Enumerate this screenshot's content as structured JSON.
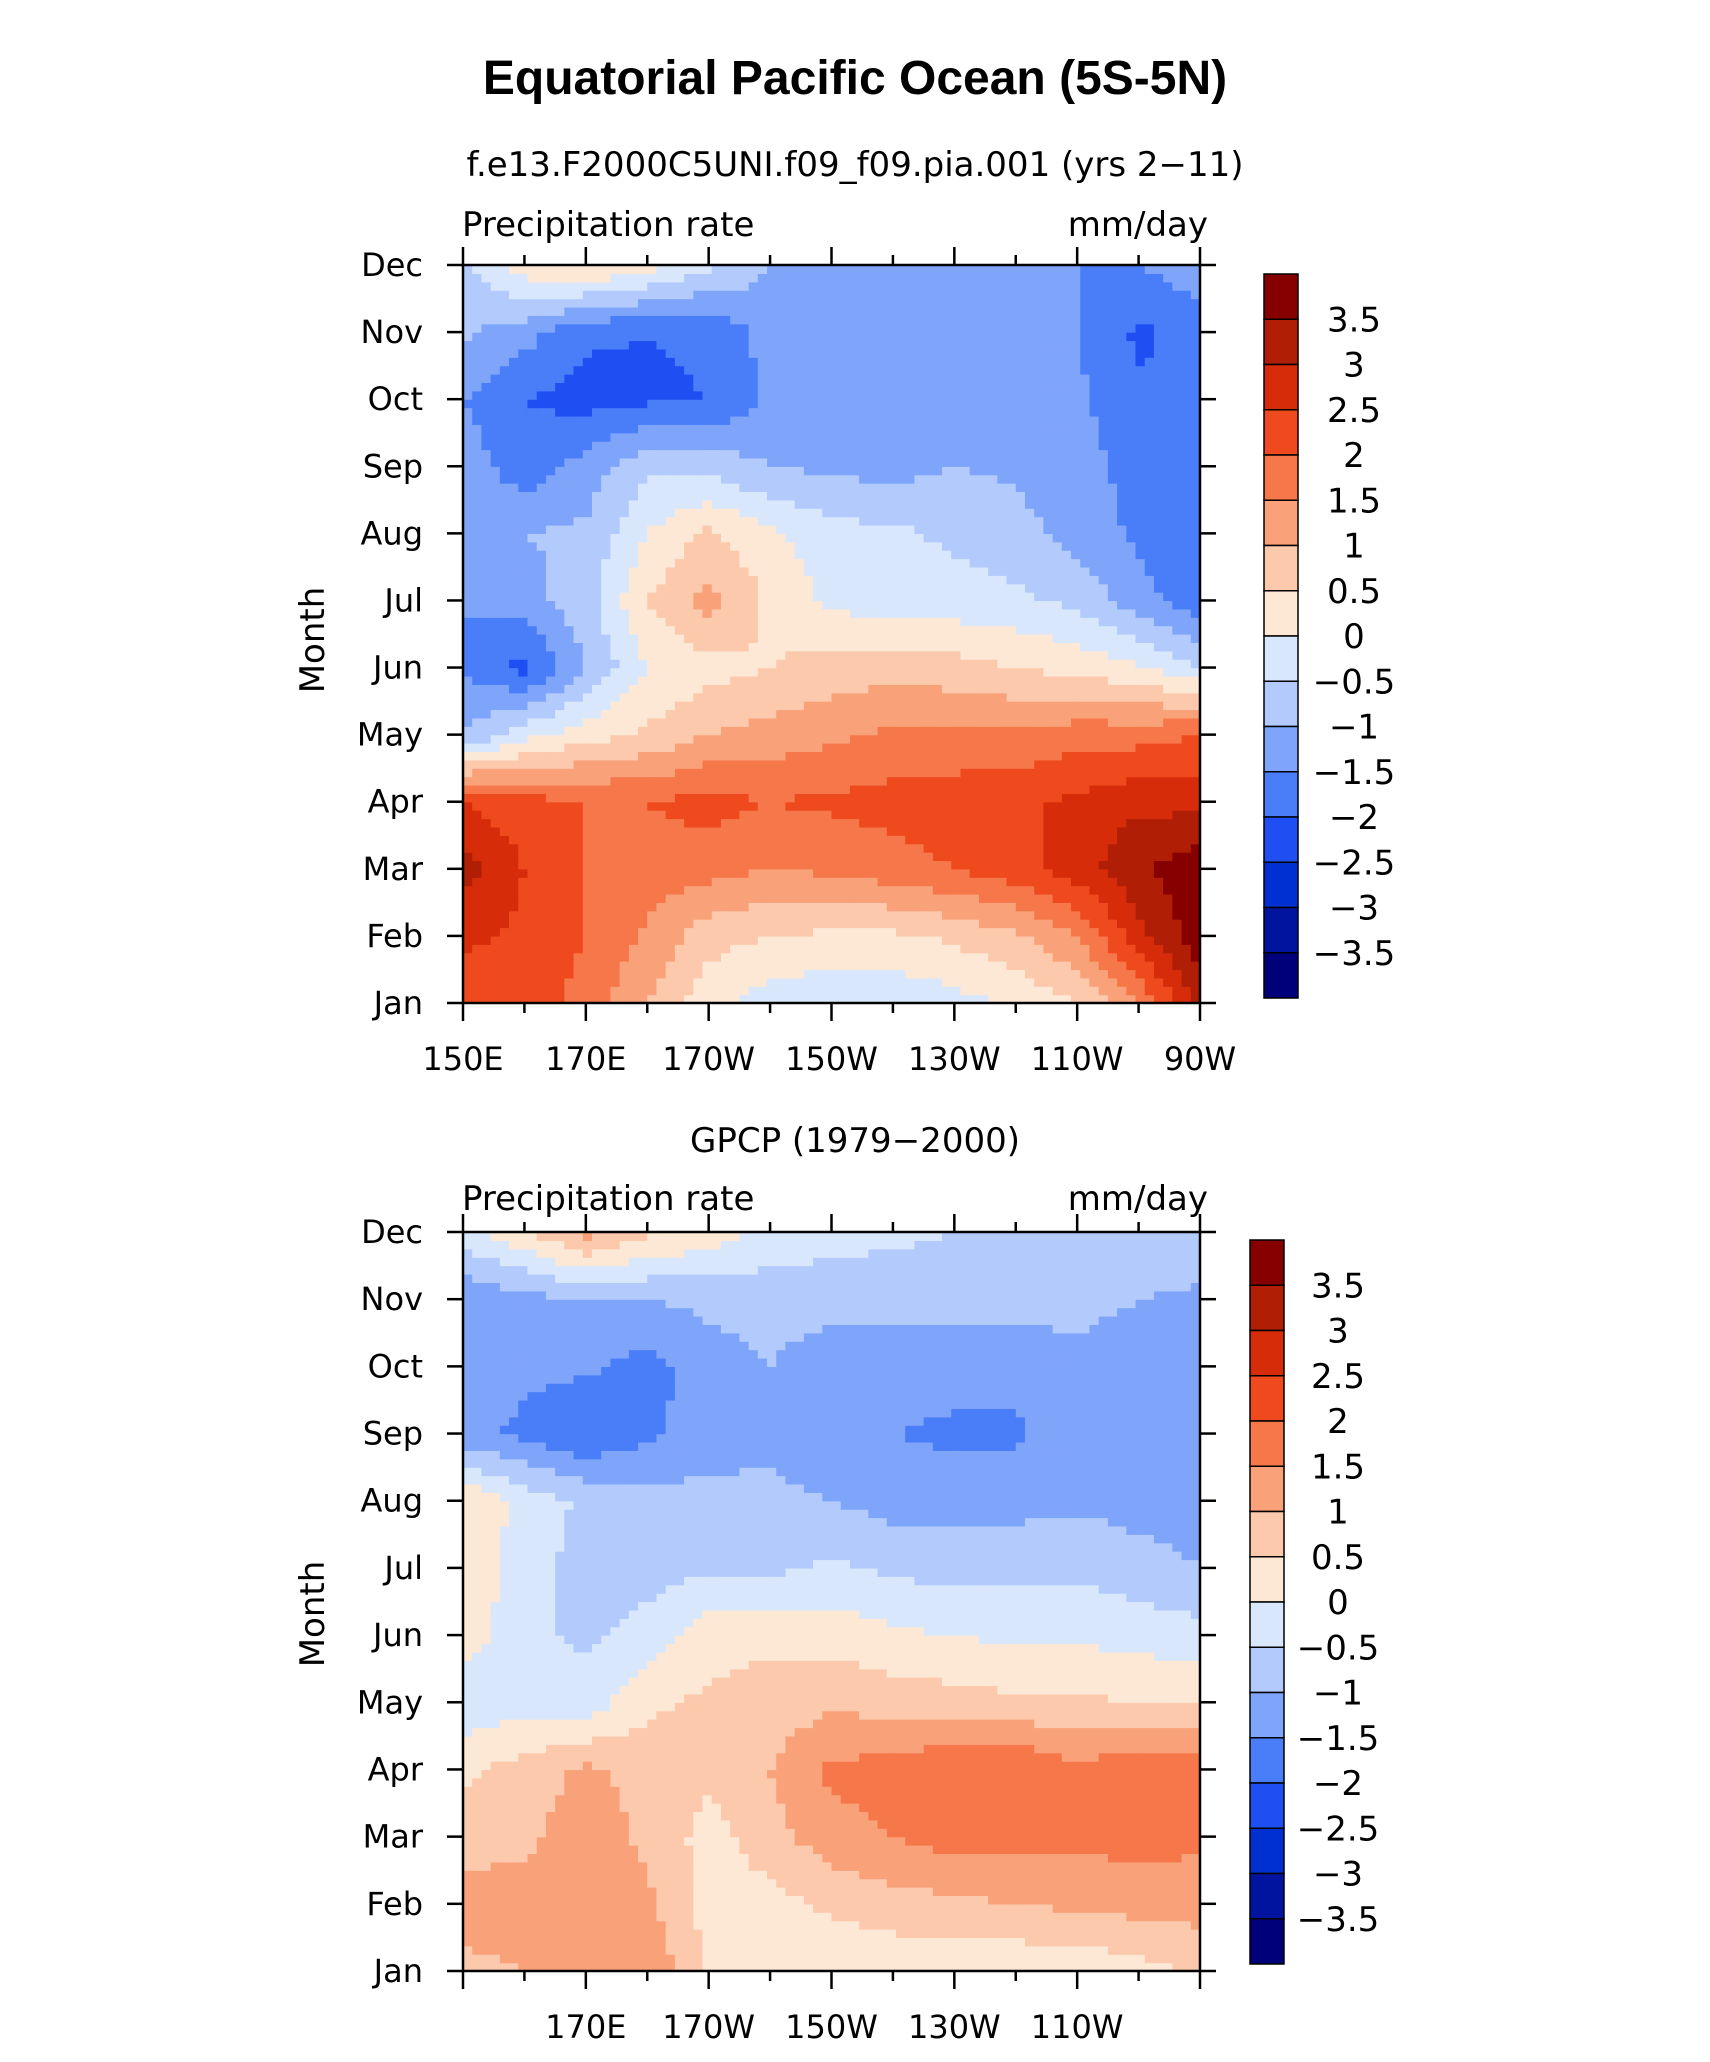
{
  "figure": {
    "title": "Equatorial Pacific Ocean (5S-5N)"
  },
  "chart_data": [
    {
      "type": "heatmap",
      "title": "f.e13.F2000C5UNI.f09_f09.pia.001 (yrs 2−11)",
      "left_string": "Precipitation rate",
      "right_string": "mm/day",
      "ylabel": "Month",
      "x_tick_labels": [
        "150E",
        "170E",
        "170W",
        "150W",
        "130W",
        "110W",
        "90W"
      ],
      "y_tick_labels": [
        "Jan",
        "Feb",
        "Mar",
        "Apr",
        "May",
        "Jun",
        "Jul",
        "Aug",
        "Sep",
        "Oct",
        "Nov",
        "Dec"
      ],
      "x": [
        150,
        160,
        170,
        180,
        190,
        200,
        210,
        220,
        230,
        240,
        250,
        260,
        270
      ],
      "y": [
        "Jan",
        "Feb",
        "Mar",
        "Apr",
        "May",
        "Jun",
        "Jul",
        "Aug",
        "Sep",
        "Oct",
        "Nov",
        "Dec"
      ],
      "z": [
        [
          2.2,
          2.3,
          1.8,
          1.0,
          0.2,
          -0.3,
          -0.4,
          -0.4,
          -0.2,
          0.1,
          0.5,
          1.5,
          3.2
        ],
        [
          2.6,
          2.4,
          2.0,
          1.4,
          0.7,
          0.5,
          0.4,
          0.4,
          0.6,
          0.9,
          1.5,
          2.8,
          3.8
        ],
        [
          3.2,
          2.5,
          2.0,
          1.8,
          1.7,
          1.5,
          1.6,
          1.8,
          2.0,
          2.3,
          2.8,
          3.4,
          3.9
        ],
        [
          2.5,
          2.2,
          2.0,
          2.0,
          2.2,
          2.0,
          2.1,
          2.2,
          2.3,
          2.4,
          2.6,
          2.9,
          2.8
        ],
        [
          -1.0,
          -0.2,
          0.3,
          0.6,
          1.0,
          1.2,
          1.4,
          1.6,
          1.6,
          1.6,
          1.8,
          1.8,
          2.0
        ],
        [
          -1.5,
          -2.2,
          -1.0,
          0.0,
          0.3,
          0.5,
          0.7,
          0.8,
          0.7,
          0.5,
          0.3,
          0.1,
          -0.5
        ],
        [
          -1.5,
          -1.2,
          -0.7,
          0.5,
          1.2,
          0.4,
          -0.1,
          -0.3,
          -0.3,
          -0.4,
          -0.6,
          -1.3,
          -1.8
        ],
        [
          -1.3,
          -1.0,
          -0.9,
          0.0,
          0.6,
          0.1,
          -0.3,
          -0.4,
          -0.6,
          -0.8,
          -1.2,
          -1.6,
          -2.0
        ],
        [
          -1.2,
          -1.8,
          -1.3,
          -0.6,
          -0.7,
          -1.0,
          -1.1,
          -1.2,
          -1.0,
          -1.1,
          -1.3,
          -1.7,
          -2.0
        ],
        [
          -1.5,
          -2.0,
          -2.2,
          -2.1,
          -2.0,
          -1.4,
          -1.3,
          -1.3,
          -1.2,
          -1.3,
          -1.4,
          -1.9,
          -2.0
        ],
        [
          -0.9,
          -1.3,
          -1.9,
          -2.0,
          -1.9,
          -1.3,
          -1.2,
          -1.3,
          -1.2,
          -1.4,
          -1.5,
          -2.1,
          -1.8
        ],
        [
          -0.6,
          0.3,
          0.6,
          0.2,
          -0.4,
          -1.0,
          -1.1,
          -1.2,
          -1.2,
          -1.3,
          -1.5,
          -1.5,
          -1.2
        ]
      ]
    },
    {
      "type": "heatmap",
      "title": "GPCP (1979−2000)",
      "left_string": "Precipitation rate",
      "right_string": "mm/day",
      "ylabel": "Month",
      "x_tick_labels": [
        "170E",
        "170W",
        "150W",
        "130W",
        "110W"
      ],
      "y_tick_labels": [
        "Jan",
        "Feb",
        "Mar",
        "Apr",
        "May",
        "Jun",
        "Jul",
        "Aug",
        "Sep",
        "Oct",
        "Nov",
        "Dec"
      ],
      "x": [
        150,
        160,
        170,
        180,
        190,
        200,
        210,
        220,
        230,
        240,
        250,
        260,
        270
      ],
      "y": [
        "Jan",
        "Feb",
        "Mar",
        "Apr",
        "May",
        "Jun",
        "Jul",
        "Aug",
        "Sep",
        "Oct",
        "Nov",
        "Dec"
      ],
      "z": [
        [
          0.9,
          1.0,
          1.4,
          1.5,
          0.4,
          0.2,
          0.1,
          0.1,
          0.1,
          0.1,
          0.1,
          0.3,
          0.6
        ],
        [
          1.2,
          1.2,
          1.3,
          1.1,
          0.3,
          0.3,
          0.6,
          0.8,
          0.9,
          1.0,
          1.1,
          1.2,
          1.2
        ],
        [
          0.8,
          0.9,
          1.3,
          0.9,
          0.3,
          0.8,
          1.3,
          1.5,
          1.7,
          1.7,
          1.6,
          1.7,
          1.6
        ],
        [
          0.4,
          0.7,
          1.1,
          0.8,
          0.6,
          1.0,
          1.6,
          1.7,
          2.0,
          2.0,
          1.6,
          1.9,
          1.8
        ],
        [
          -0.4,
          -0.2,
          -0.3,
          0.4,
          0.6,
          0.7,
          0.9,
          0.8,
          0.7,
          0.6,
          0.6,
          0.5,
          0.5
        ],
        [
          0.3,
          -0.4,
          -0.6,
          -0.3,
          0.3,
          0.4,
          0.3,
          0.1,
          0.0,
          -0.1,
          -0.1,
          -0.2,
          -0.3
        ],
        [
          0.5,
          -0.3,
          -0.7,
          -0.7,
          -0.6,
          -0.6,
          -0.4,
          -0.6,
          -0.7,
          -0.6,
          -0.6,
          -0.8,
          -1.0
        ],
        [
          0.5,
          -0.2,
          -0.6,
          -0.8,
          -0.8,
          -0.8,
          -1.0,
          -1.2,
          -1.2,
          -1.2,
          -1.1,
          -1.2,
          -1.2
        ],
        [
          -1.4,
          -1.6,
          -2.0,
          -1.6,
          -1.3,
          -1.2,
          -1.5,
          -1.5,
          -1.6,
          -1.6,
          -1.2,
          -1.2,
          -1.4
        ],
        [
          -1.1,
          -1.4,
          -1.4,
          -1.7,
          -1.2,
          -1.0,
          -1.3,
          -1.3,
          -1.3,
          -1.3,
          -1.1,
          -1.2,
          -1.3
        ],
        [
          -1.4,
          -1.2,
          -1.0,
          -1.0,
          -0.9,
          -0.8,
          -0.8,
          -0.8,
          -0.8,
          -0.8,
          -0.9,
          -1.0,
          -1.1
        ],
        [
          -0.2,
          0.4,
          1.2,
          0.6,
          0.3,
          -0.2,
          -0.3,
          -0.4,
          -0.5,
          -0.5,
          -0.6,
          -0.6,
          -0.6
        ]
      ]
    }
  ],
  "colorbar": {
    "levels": [
      -3.5,
      -3,
      -2.5,
      -2,
      -1.5,
      -1,
      -0.5,
      0,
      0.5,
      1,
      1.5,
      2,
      2.5,
      3,
      3.5
    ],
    "labels": [
      "3.5",
      "3",
      "2.5",
      "2",
      "1.5",
      "1",
      "0.5",
      "0",
      "−0.5",
      "−1",
      "−1.5",
      "−2",
      "−2.5",
      "−3",
      "−3.5"
    ],
    "colors": [
      "#00007a",
      "#0014a0",
      "#0030d2",
      "#1f4ff2",
      "#4a7df8",
      "#7fa5fa",
      "#b2cbfc",
      "#d9e7fd",
      "#fde8d6",
      "#fcc9ac",
      "#f9a27a",
      "#f6784a",
      "#ef4a1e",
      "#d72c0a",
      "#b01e06",
      "#870000"
    ]
  }
}
